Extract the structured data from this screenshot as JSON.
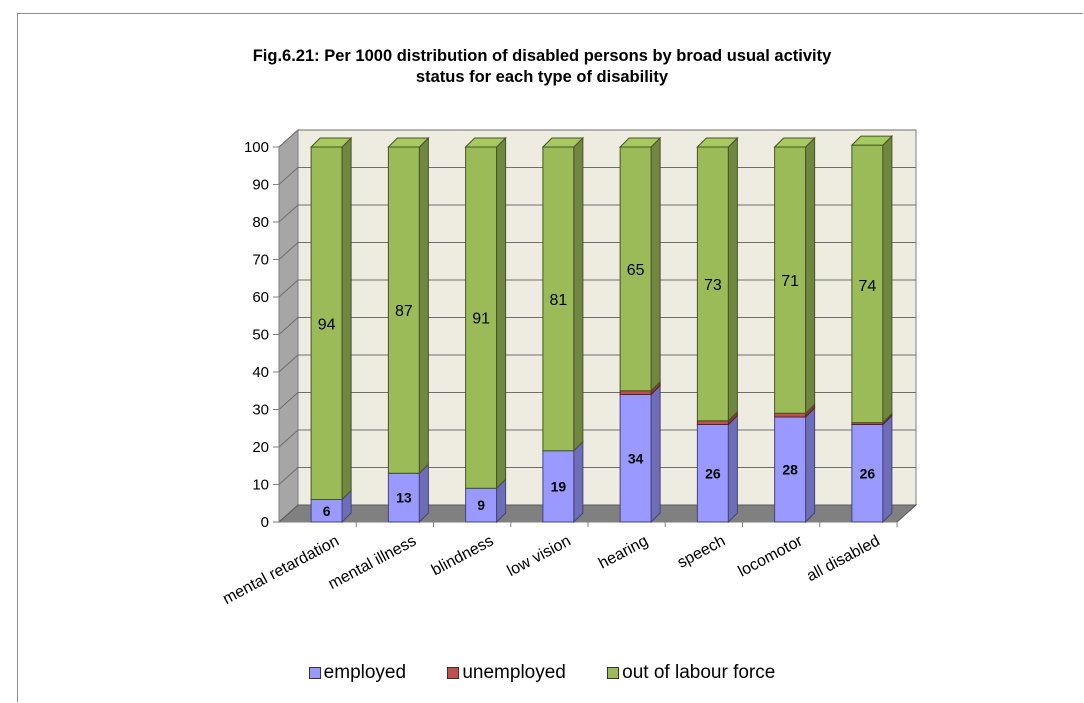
{
  "chart_data": {
    "type": "bar",
    "stacked": true,
    "three_d": true,
    "title_line1": "Fig.6.21: Per 1000 distribution of disabled persons by broad usual activity",
    "title_line2": "status for each type of disability",
    "categories": [
      "mental retardation",
      "mental illness",
      "blindness",
      "low vision",
      "hearing",
      "speech",
      "locomotor",
      "all disabled"
    ],
    "series": [
      {
        "name": "employed",
        "values": [
          6,
          13,
          9,
          19,
          34,
          26,
          28,
          26
        ],
        "color": "#9999ff"
      },
      {
        "name": "unemployed",
        "values": [
          0,
          0,
          0,
          0,
          1,
          1,
          1,
          0.5
        ],
        "color": "#c0504d"
      },
      {
        "name": "out of labour force",
        "values": [
          94,
          87,
          91,
          81,
          65,
          73,
          71,
          74
        ],
        "color": "#9bbb59"
      }
    ],
    "ylim": [
      0,
      100
    ],
    "yticks": [
      "0",
      "10",
      "20",
      "30",
      "40",
      "50",
      "60",
      "70",
      "80",
      "90",
      "100"
    ],
    "grid": true,
    "legend_position": "bottom"
  }
}
